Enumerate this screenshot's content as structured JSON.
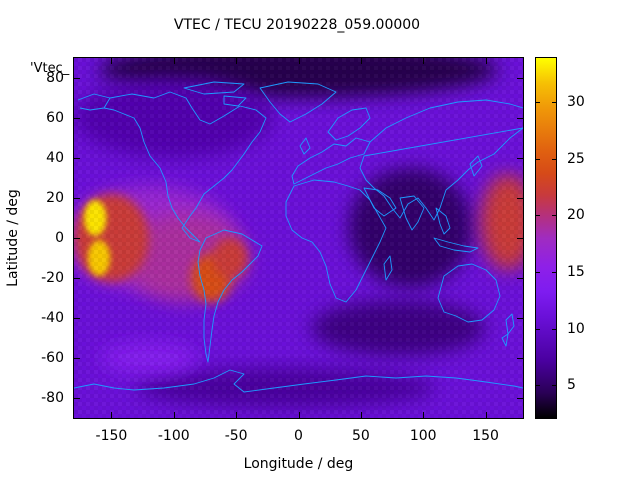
{
  "title": "VTEC / TECU 20190228_059.00000",
  "series_key": "'Vtec_",
  "colors": {
    "coastline": "#1e9bff",
    "background_field": "#6a10d8",
    "high_vtec": "#ffff20",
    "low_vtec": "#1a0030"
  },
  "chart_data": {
    "type": "heatmap",
    "title": "VTEC / TECU 20190228_059.00000",
    "xlabel": "Longitude / deg",
    "ylabel": "Latitude / deg",
    "xlim": [
      -180,
      180
    ],
    "ylim": [
      -90,
      90
    ],
    "x_ticks": [
      -150,
      -100,
      -50,
      0,
      50,
      100,
      150
    ],
    "y_ticks": [
      80,
      60,
      40,
      20,
      0,
      -20,
      -40,
      -60,
      -80
    ],
    "colorbar": {
      "min": 2,
      "max": 34,
      "ticks": [
        30,
        25,
        20,
        15,
        10,
        5
      ],
      "palette": "black-purple-red-orange-yellow"
    },
    "overlay": "world coastlines",
    "features": [
      {
        "region": "equatorial anomaly, central/eastern Pacific",
        "lon": -163,
        "lat": 10,
        "vtec": 33
      },
      {
        "region": "equatorial anomaly, central/eastern Pacific",
        "lon": -160,
        "lat": -10,
        "vtec": 32
      },
      {
        "region": "South America equatorial band",
        "lon": -70,
        "lat": -20,
        "vtec": 24
      },
      {
        "region": "western Pacific band",
        "lon": 168,
        "lat": 8,
        "vtec": 24
      },
      {
        "region": "northern polar trough",
        "lon": 0,
        "lat": 85,
        "vtec": 4
      },
      {
        "region": "Asia low",
        "lon": 80,
        "lat": 10,
        "vtec": 5
      },
      {
        "region": "southern mid-latitude trough",
        "lon": 80,
        "lat": -40,
        "vtec": 6
      }
    ]
  }
}
